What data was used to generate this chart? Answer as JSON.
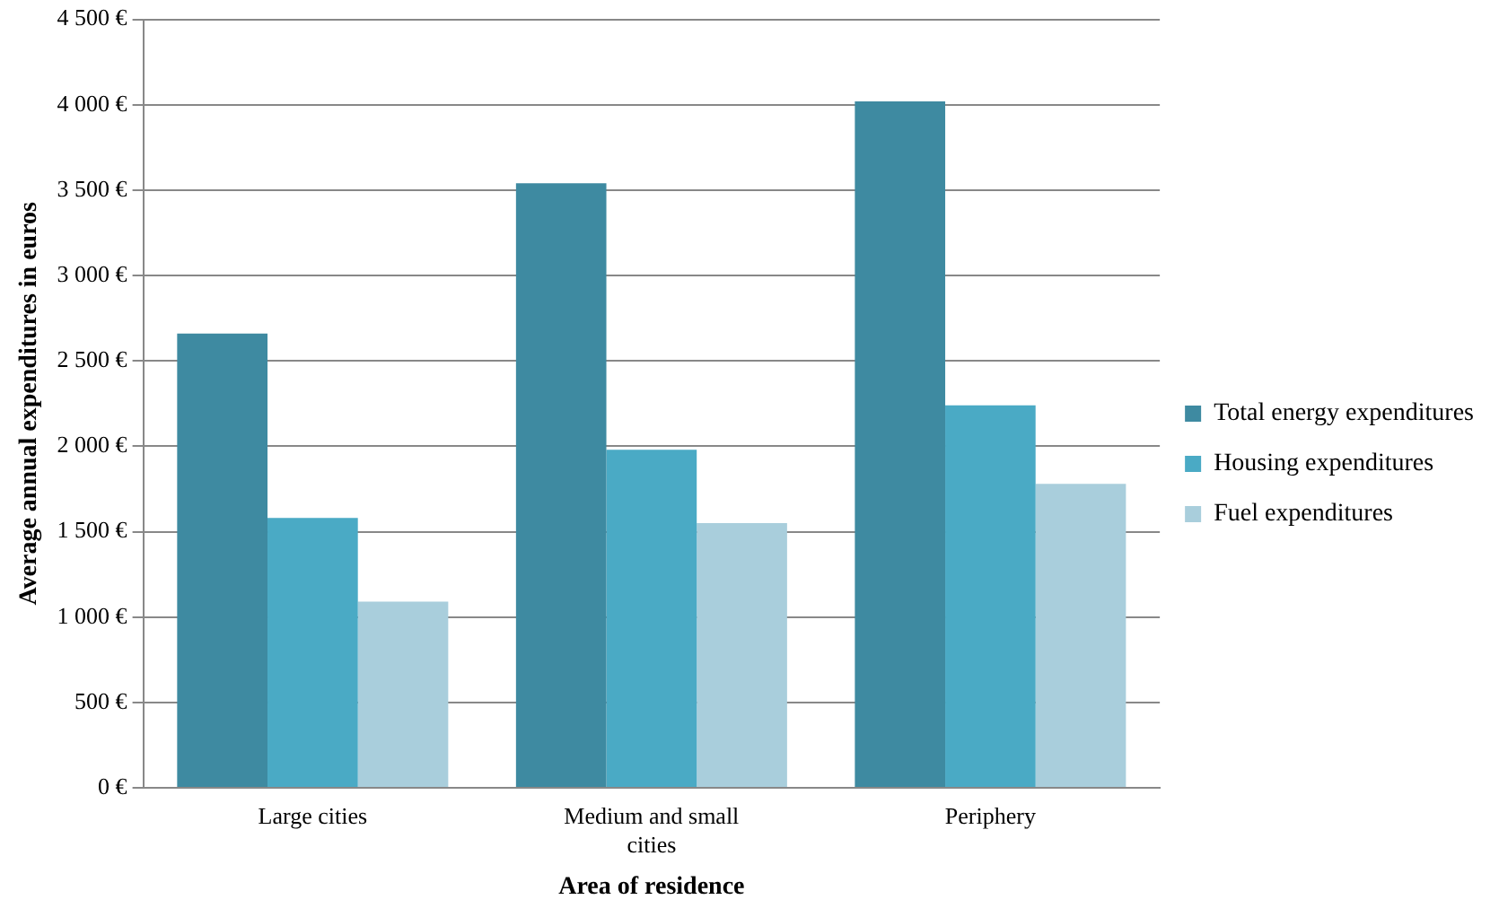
{
  "chart_data": {
    "type": "bar",
    "xlabel": "Area of residence",
    "ylabel": "Average annual expenditures in euros",
    "categories": [
      "Large cities",
      "Medium and small cities",
      "Periphery"
    ],
    "series": [
      {
        "name": "Total energy expenditures",
        "color": "#3e8aa1",
        "values": [
          2660,
          3540,
          4020
        ]
      },
      {
        "name": "Housing expenditures",
        "color": "#4aaac5",
        "values": [
          1580,
          1980,
          2240
        ]
      },
      {
        "name": "Fuel expenditures",
        "color": "#a9cedc",
        "values": [
          1090,
          1550,
          1780
        ]
      }
    ],
    "ylim": [
      0,
      4500
    ],
    "yticks": [
      {
        "value": 0,
        "label": "0 €"
      },
      {
        "value": 500,
        "label": "500 €"
      },
      {
        "value": 1000,
        "label": "1 000 €"
      },
      {
        "value": 1500,
        "label": "1 500 €"
      },
      {
        "value": 2000,
        "label": "2 000 €"
      },
      {
        "value": 2500,
        "label": "2 500 €"
      },
      {
        "value": 3000,
        "label": "3 000 €"
      },
      {
        "value": 3500,
        "label": "3 500 €"
      },
      {
        "value": 4000,
        "label": "4 000 €"
      },
      {
        "value": 4500,
        "label": "4 500 €"
      }
    ],
    "grid": "y",
    "legend": "right"
  }
}
